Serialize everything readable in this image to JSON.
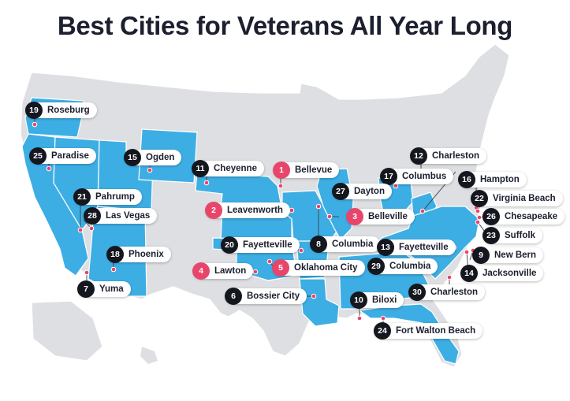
{
  "title": "Best Cities for Veterans All Year Long",
  "colors": {
    "base_state": "#dedfe3",
    "highlight_state": "#3daee4",
    "top_rank_badge": "#e8456a",
    "badge": "#15171f",
    "border": "#ffffff",
    "dot": "#e8456a"
  },
  "cities": [
    {
      "rank": "1",
      "name": "Bellevue",
      "top": true
    },
    {
      "rank": "2",
      "name": "Leavenworth",
      "top": true
    },
    {
      "rank": "3",
      "name": "Belleville",
      "top": true
    },
    {
      "rank": "4",
      "name": "Lawton",
      "top": true
    },
    {
      "rank": "5",
      "name": "Oklahoma City",
      "top": true
    },
    {
      "rank": "6",
      "name": "Bossier City",
      "top": false
    },
    {
      "rank": "7",
      "name": "Yuma",
      "top": false
    },
    {
      "rank": "8",
      "name": "Columbia",
      "top": false
    },
    {
      "rank": "9",
      "name": "New Bern",
      "top": false
    },
    {
      "rank": "10",
      "name": "Biloxi",
      "top": false
    },
    {
      "rank": "11",
      "name": "Cheyenne",
      "top": false
    },
    {
      "rank": "12",
      "name": "Charleston",
      "top": false
    },
    {
      "rank": "13",
      "name": "Fayetteville",
      "top": false
    },
    {
      "rank": "14",
      "name": "Jacksonville",
      "top": false
    },
    {
      "rank": "15",
      "name": "Ogden",
      "top": false
    },
    {
      "rank": "16",
      "name": "Hampton",
      "top": false
    },
    {
      "rank": "17",
      "name": "Columbus",
      "top": false
    },
    {
      "rank": "18",
      "name": "Phoenix",
      "top": false
    },
    {
      "rank": "19",
      "name": "Roseburg",
      "top": false
    },
    {
      "rank": "20",
      "name": "Fayetteville",
      "top": false
    },
    {
      "rank": "21",
      "name": "Pahrump",
      "top": false
    },
    {
      "rank": "22",
      "name": "Virginia Beach",
      "top": false
    },
    {
      "rank": "23",
      "name": "Suffolk",
      "top": false
    },
    {
      "rank": "24",
      "name": "Fort Walton Beach",
      "top": false
    },
    {
      "rank": "25",
      "name": "Paradise",
      "top": false
    },
    {
      "rank": "26",
      "name": "Chesapeake",
      "top": false
    },
    {
      "rank": "27",
      "name": "Dayton",
      "top": false
    },
    {
      "rank": "28",
      "name": "Las Vegas",
      "top": false
    },
    {
      "rank": "29",
      "name": "Columbia",
      "top": false
    },
    {
      "rank": "30",
      "name": "Charleston",
      "top": false
    }
  ]
}
